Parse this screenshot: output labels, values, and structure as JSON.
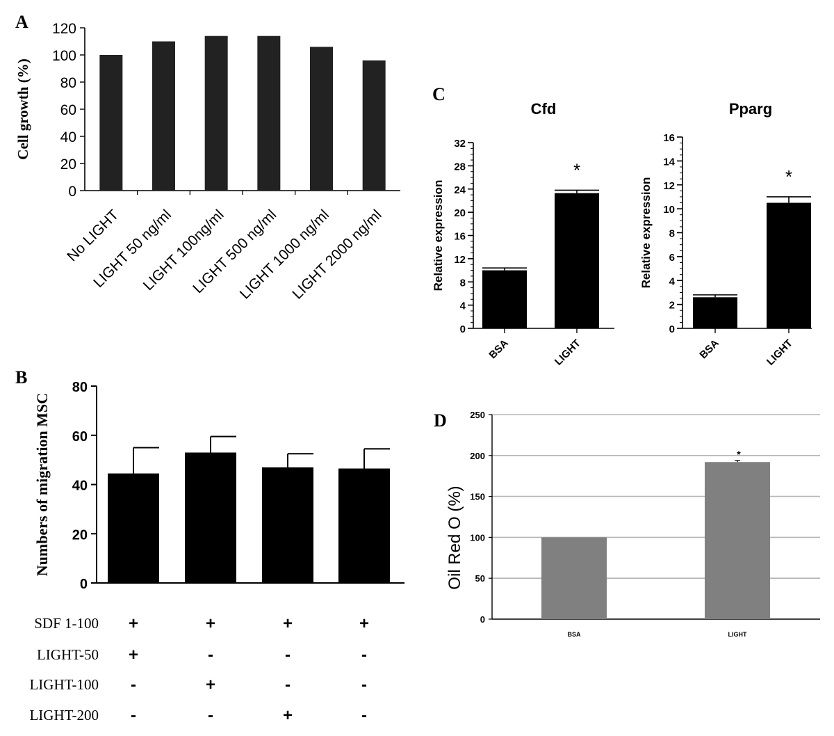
{
  "chart_data": [
    {
      "id": "A",
      "panel_label": "A",
      "type": "bar",
      "title": "",
      "xlabel": "",
      "ylabel": "Cell growth (%)",
      "ylim": [
        0,
        120
      ],
      "yticks": [
        0,
        20,
        40,
        60,
        80,
        100,
        120
      ],
      "categories": [
        "No LIGHT",
        "LIGHT 50 ng/ml",
        "LIGHT 100ng/ml",
        "LIGHT 500 ng/ml",
        "LIGHT 1000 ng/ml",
        "LIGHT 2000 ng/ml"
      ],
      "values": [
        100,
        110,
        114,
        114,
        106,
        96
      ],
      "bar_color": "#222222"
    },
    {
      "id": "B",
      "panel_label": "B",
      "type": "bar",
      "title": "",
      "xlabel": "",
      "ylabel": "Numbers of migration  MSC",
      "ylim": [
        0,
        80
      ],
      "yticks": [
        0,
        20,
        40,
        60,
        80
      ],
      "values": [
        44.5,
        53,
        47,
        46.5
      ],
      "errors": [
        10.5,
        6.5,
        5.5,
        8
      ],
      "bar_color": "#000000",
      "condition_rows": [
        {
          "label": "SDF 1-100",
          "marks": [
            "+",
            "+",
            "+",
            "+"
          ]
        },
        {
          "label": "LIGHT-50",
          "marks": [
            "+",
            "-",
            "-",
            "-"
          ]
        },
        {
          "label": "LIGHT-100",
          "marks": [
            "-",
            "+",
            "-",
            "-"
          ]
        },
        {
          "label": "LIGHT-200",
          "marks": [
            "-",
            "-",
            "+",
            "-"
          ]
        }
      ]
    },
    {
      "id": "C1",
      "panel_label": "C",
      "type": "bar",
      "title": "Cfd",
      "xlabel": "",
      "ylabel": "Relative expression",
      "ylim": [
        0,
        32
      ],
      "yticks": [
        0,
        4,
        8,
        12,
        16,
        20,
        24,
        28,
        32
      ],
      "categories": [
        "BSA",
        "LIGHT"
      ],
      "values": [
        10,
        23.3
      ],
      "errors": [
        0.4,
        0.5
      ],
      "annotations": [
        "",
        "*"
      ],
      "bar_color": "#000000"
    },
    {
      "id": "C2",
      "panel_label": "",
      "type": "bar",
      "title": "Pparg",
      "xlabel": "",
      "ylabel": "Relative expression",
      "ylim": [
        0,
        16
      ],
      "yticks": [
        0,
        2,
        4,
        6,
        8,
        10,
        12,
        14,
        16
      ],
      "categories": [
        "BSA",
        "LIGHT"
      ],
      "values": [
        2.6,
        10.5
      ],
      "errors": [
        0.2,
        0.5
      ],
      "annotations": [
        "",
        "*"
      ],
      "bar_color": "#000000"
    },
    {
      "id": "D",
      "panel_label": "D",
      "type": "bar",
      "title": "",
      "xlabel": "",
      "ylabel": "Oil Red O (%)",
      "ylim": [
        0,
        250
      ],
      "yticks": [
        0,
        50,
        100,
        150,
        200,
        250
      ],
      "grid": true,
      "categories": [
        "BSA",
        "LIGHT"
      ],
      "values": [
        100,
        192
      ],
      "errors": [
        0,
        2
      ],
      "annotations": [
        "",
        "*"
      ],
      "bar_color": "#808080",
      "grid_color": "#b5b5b5"
    }
  ]
}
